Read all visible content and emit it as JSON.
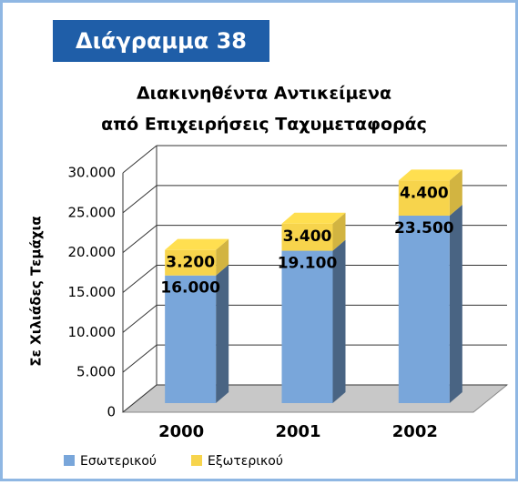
{
  "header": "Διάγραμμα 38",
  "chart_data": {
    "type": "bar3d_stacked",
    "title": [
      "Διακινηθέντα Αντικείμενα",
      "από Επιχειρήσεις Ταχυμεταφοράς"
    ],
    "ylabel": "Σε Χιλιάδες Τεμάχια",
    "categories": [
      "2000",
      "2001",
      "2002"
    ],
    "series": [
      {
        "name": "Εσωτερικού",
        "color": "#79a6da",
        "values": [
          16000,
          19100,
          23500
        ],
        "value_labels": [
          "16.000",
          "19.100",
          "23.500"
        ]
      },
      {
        "name": "Εξωτερικού",
        "color": "#f7d44c",
        "values": [
          3200,
          3400,
          4400
        ],
        "value_labels": [
          "3.200",
          "3.400",
          "4.400"
        ]
      }
    ],
    "ylim": [
      0,
      30000
    ],
    "yticks": [
      0,
      {
        "value": 5000,
        "label": "5.000"
      },
      {
        "value": 10000,
        "label": "10.000"
      },
      {
        "value": 15000,
        "label": "15.000"
      },
      {
        "value": 20000,
        "label": "20.000"
      },
      {
        "value": 25000,
        "label": "25.000"
      },
      {
        "value": 30000,
        "label": "30.000"
      }
    ],
    "grid": true
  }
}
